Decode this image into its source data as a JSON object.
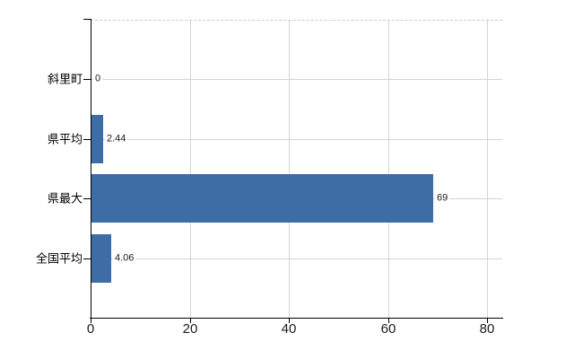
{
  "chart_data": {
    "type": "bar",
    "orientation": "horizontal",
    "title": "",
    "xlabel": "",
    "ylabel": "",
    "categories": [
      "斜里町",
      "県平均",
      "県最大",
      "全国平均"
    ],
    "values": [
      0,
      2.44,
      69,
      4.06
    ],
    "value_labels": [
      "0",
      "2.44",
      "69",
      "4.06"
    ],
    "x_ticks": [
      0,
      20,
      40,
      60,
      80
    ],
    "x_tick_labels": [
      "0",
      "20",
      "40",
      "60",
      "80"
    ],
    "xlim": [
      0,
      83
    ],
    "grid": true,
    "legend": false,
    "colors": {
      "bar": "#3e6da6",
      "grid": "#d4d4d4",
      "axis": "#000000",
      "text": "#000000",
      "value_text": "#1a1a1a"
    }
  }
}
